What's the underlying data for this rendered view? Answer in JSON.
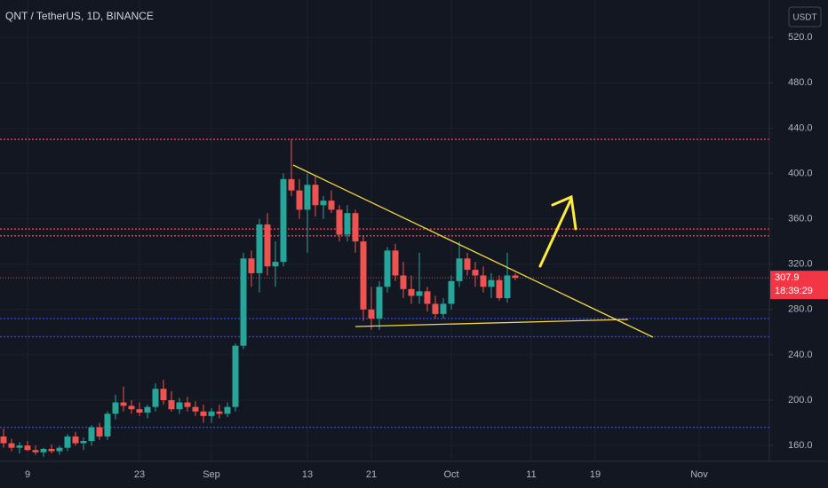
{
  "chart_data": {
    "type": "candlestick",
    "title": "QNT / TetherUS, 1D, BINANCE",
    "currency": "USDT",
    "categories": [
      null,
      null,
      null,
      "9",
      null,
      null,
      null,
      null,
      null,
      null,
      null,
      null,
      null,
      null,
      null,
      null,
      null,
      "23",
      null,
      null,
      null,
      null,
      null,
      null,
      null,
      null,
      "Sep",
      null,
      null,
      null,
      null,
      null,
      null,
      null,
      null,
      null,
      null,
      null,
      "13",
      null,
      null,
      null,
      null,
      null,
      null,
      null,
      "21",
      null,
      null,
      null,
      null,
      null,
      null,
      null,
      null,
      null,
      "Oct",
      null,
      null,
      null,
      null,
      null,
      null,
      null,
      null,
      null,
      "11",
      null,
      null,
      null,
      null,
      null,
      null,
      null,
      "19",
      null,
      null,
      null,
      null,
      null,
      null,
      null,
      null,
      null,
      null,
      null,
      null,
      "Nov",
      null,
      null,
      null,
      null,
      null,
      null,
      null,
      null
    ],
    "open": [
      168,
      162,
      158,
      160,
      156,
      154,
      157,
      155,
      158,
      168,
      162,
      164,
      176,
      168,
      188,
      198,
      195,
      192,
      189,
      194,
      210,
      200,
      192,
      198,
      194,
      190,
      186,
      190,
      188,
      194,
      248,
      325,
      312,
      355,
      318,
      322,
      395,
      385,
      368,
      390,
      372,
      376,
      368,
      346,
      365,
      340,
      280,
      272,
      300,
      332,
      310,
      298,
      292,
      296,
      285,
      276,
      285,
      305,
      325,
      315,
      310,
      300,
      306,
      290,
      310,
      null,
      null,
      null,
      null,
      null,
      null,
      null,
      null,
      null,
      null,
      null,
      null,
      null,
      null,
      null,
      null,
      null,
      null,
      null,
      null,
      null,
      null,
      null,
      null,
      null,
      null,
      null,
      null,
      null,
      null,
      null
    ],
    "high": [
      175,
      166,
      163,
      164,
      160,
      158,
      161,
      160,
      170,
      172,
      167,
      178,
      180,
      190,
      205,
      212,
      200,
      198,
      196,
      215,
      218,
      208,
      202,
      203,
      199,
      196,
      193,
      196,
      198,
      250,
      330,
      332,
      360,
      365,
      340,
      400,
      430,
      395,
      400,
      398,
      380,
      385,
      372,
      372,
      368,
      345,
      300,
      305,
      335,
      338,
      322,
      310,
      330,
      300,
      292,
      290,
      310,
      340,
      330,
      322,
      318,
      312,
      310,
      330,
      312,
      null,
      null,
      null,
      null,
      null,
      null,
      null,
      null,
      null,
      null,
      null,
      null,
      null,
      null,
      null,
      null,
      null,
      null,
      null,
      null,
      null,
      null,
      null,
      null,
      null,
      null,
      null,
      null,
      null,
      null,
      null
    ],
    "low": [
      158,
      155,
      153,
      155,
      152,
      150,
      153,
      152,
      155,
      160,
      156,
      160,
      165,
      165,
      183,
      190,
      188,
      186,
      184,
      190,
      196,
      190,
      188,
      190,
      186,
      180,
      180,
      184,
      185,
      190,
      245,
      300,
      295,
      310,
      300,
      318,
      380,
      360,
      330,
      362,
      360,
      365,
      340,
      340,
      330,
      270,
      262,
      262,
      295,
      305,
      290,
      285,
      285,
      278,
      272,
      272,
      280,
      300,
      310,
      300,
      295,
      290,
      288,
      286,
      306,
      null,
      null,
      null,
      null,
      null,
      null,
      null,
      null,
      null,
      null,
      null,
      null,
      null,
      null,
      null,
      null,
      null,
      null,
      null,
      null,
      null,
      null,
      null,
      null,
      null,
      null,
      null,
      null,
      null,
      null,
      null
    ],
    "close": [
      162,
      158,
      160,
      156,
      154,
      157,
      155,
      158,
      168,
      162,
      164,
      176,
      168,
      188,
      198,
      195,
      192,
      189,
      194,
      210,
      200,
      192,
      198,
      194,
      190,
      186,
      190,
      188,
      194,
      248,
      325,
      312,
      355,
      318,
      322,
      395,
      385,
      368,
      390,
      372,
      376,
      368,
      346,
      365,
      340,
      280,
      272,
      300,
      332,
      310,
      298,
      292,
      296,
      285,
      276,
      285,
      305,
      325,
      315,
      310,
      300,
      306,
      290,
      310,
      307.9,
      null,
      null,
      null,
      null,
      null,
      null,
      null,
      null,
      null,
      null,
      null,
      null,
      null,
      null,
      null,
      null,
      null,
      null,
      null,
      null,
      null,
      null,
      null,
      null,
      null,
      null,
      null,
      null,
      null,
      null,
      null
    ],
    "up_color": "#26a69a",
    "down_color": "#ef5350",
    "ylim": [
      146,
      553
    ],
    "yticks": [
      {
        "value": 160,
        "label": "160.0"
      },
      {
        "value": 200,
        "label": "200.0"
      },
      {
        "value": 240,
        "label": "240.0"
      },
      {
        "value": 280,
        "label": "280.0"
      },
      {
        "value": 320,
        "label": "320.0"
      },
      {
        "value": 360,
        "label": "360.0"
      },
      {
        "value": 400,
        "label": "400.0"
      },
      {
        "value": 440,
        "label": "440.0"
      },
      {
        "value": 480,
        "label": "480.0"
      },
      {
        "value": 520,
        "label": "520.0"
      }
    ],
    "grid": true,
    "levels": [
      {
        "value": 430,
        "color": "#f23645"
      },
      {
        "value": 351,
        "color": "#f23645"
      },
      {
        "value": 345,
        "color": "#f23645"
      },
      {
        "value": 272,
        "color": "#2f3fd8"
      },
      {
        "value": 256,
        "color": "#2f3fd8"
      },
      {
        "value": 176,
        "color": "#2f3fd8"
      }
    ],
    "last_price": 307.9,
    "countdown": "18:39:29",
    "last_price_color": "#f23645"
  }
}
